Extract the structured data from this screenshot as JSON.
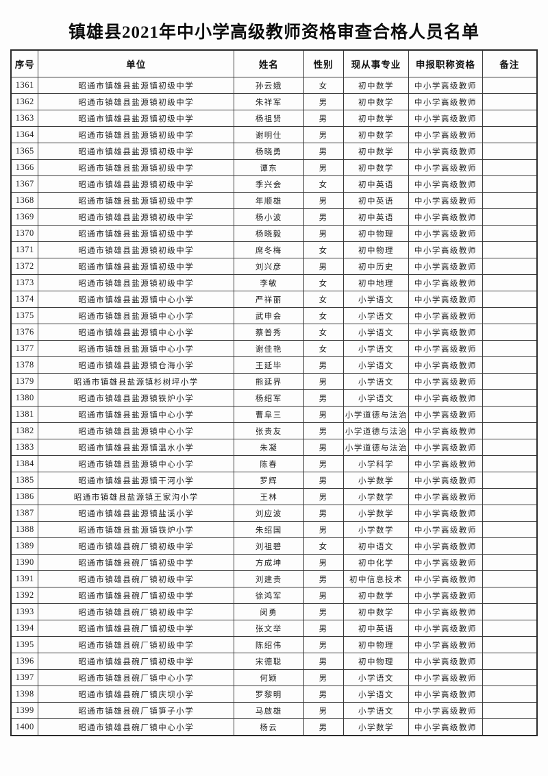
{
  "page": {
    "title": "镇雄县2021年中小学高级教师资格审查合格人员名单"
  },
  "table": {
    "columns": [
      "序号",
      "单位",
      "姓名",
      "性别",
      "现从事专业",
      "申报职称资格",
      "备注"
    ],
    "rows": [
      {
        "no": "1361",
        "unit": "昭通市镇雄县盐源镇初级中学",
        "name": "孙云娥",
        "gender": "女",
        "major": "初中数学",
        "title": "中小学高级教师",
        "remark": ""
      },
      {
        "no": "1362",
        "unit": "昭通市镇雄县盐源镇初级中学",
        "name": "朱祥军",
        "gender": "男",
        "major": "初中数学",
        "title": "中小学高级教师",
        "remark": ""
      },
      {
        "no": "1363",
        "unit": "昭通市镇雄县盐源镇初级中学",
        "name": "杨祖贤",
        "gender": "男",
        "major": "初中数学",
        "title": "中小学高级教师",
        "remark": ""
      },
      {
        "no": "1364",
        "unit": "昭通市镇雄县盐源镇初级中学",
        "name": "谢明仕",
        "gender": "男",
        "major": "初中数学",
        "title": "中小学高级教师",
        "remark": ""
      },
      {
        "no": "1365",
        "unit": "昭通市镇雄县盐源镇初级中学",
        "name": "杨晓勇",
        "gender": "男",
        "major": "初中数学",
        "title": "中小学高级教师",
        "remark": ""
      },
      {
        "no": "1366",
        "unit": "昭通市镇雄县盐源镇初级中学",
        "name": "谭东",
        "gender": "男",
        "major": "初中数学",
        "title": "中小学高级教师",
        "remark": ""
      },
      {
        "no": "1367",
        "unit": "昭通市镇雄县盐源镇初级中学",
        "name": "季兴会",
        "gender": "女",
        "major": "初中英语",
        "title": "中小学高级教师",
        "remark": ""
      },
      {
        "no": "1368",
        "unit": "昭通市镇雄县盐源镇初级中学",
        "name": "年顺雄",
        "gender": "男",
        "major": "初中英语",
        "title": "中小学高级教师",
        "remark": ""
      },
      {
        "no": "1369",
        "unit": "昭通市镇雄县盐源镇初级中学",
        "name": "杨小波",
        "gender": "男",
        "major": "初中英语",
        "title": "中小学高级教师",
        "remark": ""
      },
      {
        "no": "1370",
        "unit": "昭通市镇雄县盐源镇初级中学",
        "name": "杨晓毅",
        "gender": "男",
        "major": "初中物理",
        "title": "中小学高级教师",
        "remark": ""
      },
      {
        "no": "1371",
        "unit": "昭通市镇雄县盐源镇初级中学",
        "name": "席冬梅",
        "gender": "女",
        "major": "初中物理",
        "title": "中小学高级教师",
        "remark": ""
      },
      {
        "no": "1372",
        "unit": "昭通市镇雄县盐源镇初级中学",
        "name": "刘兴彦",
        "gender": "男",
        "major": "初中历史",
        "title": "中小学高级教师",
        "remark": ""
      },
      {
        "no": "1373",
        "unit": "昭通市镇雄县盐源镇初级中学",
        "name": "李敏",
        "gender": "女",
        "major": "初中地理",
        "title": "中小学高级教师",
        "remark": ""
      },
      {
        "no": "1374",
        "unit": "昭通市镇雄县盐源镇中心小学",
        "name": "严祥丽",
        "gender": "女",
        "major": "小学语文",
        "title": "中小学高级教师",
        "remark": ""
      },
      {
        "no": "1375",
        "unit": "昭通市镇雄县盐源镇中心小学",
        "name": "武申会",
        "gender": "女",
        "major": "小学语文",
        "title": "中小学高级教师",
        "remark": ""
      },
      {
        "no": "1376",
        "unit": "昭通市镇雄县盐源镇中心小学",
        "name": "蔡普秀",
        "gender": "女",
        "major": "小学语文",
        "title": "中小学高级教师",
        "remark": ""
      },
      {
        "no": "1377",
        "unit": "昭通市镇雄县盐源镇中心小学",
        "name": "谢佳艳",
        "gender": "女",
        "major": "小学语文",
        "title": "中小学高级教师",
        "remark": ""
      },
      {
        "no": "1378",
        "unit": "昭通市镇雄县盐源镇仓海小学",
        "name": "王延毕",
        "gender": "男",
        "major": "小学语文",
        "title": "中小学高级教师",
        "remark": ""
      },
      {
        "no": "1379",
        "unit": "昭通市镇雄县盐源镇杉树坪小学",
        "name": "熊延界",
        "gender": "男",
        "major": "小学语文",
        "title": "中小学高级教师",
        "remark": ""
      },
      {
        "no": "1380",
        "unit": "昭通市镇雄县盐源镇铁炉小学",
        "name": "杨绍军",
        "gender": "男",
        "major": "小学语文",
        "title": "中小学高级教师",
        "remark": ""
      },
      {
        "no": "1381",
        "unit": "昭通市镇雄县盐源镇中心小学",
        "name": "曹阜三",
        "gender": "男",
        "major": "小学道德与法治",
        "title": "中小学高级教师",
        "remark": ""
      },
      {
        "no": "1382",
        "unit": "昭通市镇雄县盐源镇中心小学",
        "name": "张贵友",
        "gender": "男",
        "major": "小学道德与法治",
        "title": "中小学高级教师",
        "remark": ""
      },
      {
        "no": "1383",
        "unit": "昭通市镇雄县盐源镇温水小学",
        "name": "朱凝",
        "gender": "男",
        "major": "小学道德与法治",
        "title": "中小学高级教师",
        "remark": ""
      },
      {
        "no": "1384",
        "unit": "昭通市镇雄县盐源镇中心小学",
        "name": "陈春",
        "gender": "男",
        "major": "小学科学",
        "title": "中小学高级教师",
        "remark": ""
      },
      {
        "no": "1385",
        "unit": "昭通市镇雄县盐源镇干河小学",
        "name": "罗辉",
        "gender": "男",
        "major": "小学数学",
        "title": "中小学高级教师",
        "remark": ""
      },
      {
        "no": "1386",
        "unit": "昭通市镇雄县盐源镇王家沟小学",
        "name": "王林",
        "gender": "男",
        "major": "小学数学",
        "title": "中小学高级教师",
        "remark": ""
      },
      {
        "no": "1387",
        "unit": "昭通市镇雄县盐源镇盐溪小学",
        "name": "刘应波",
        "gender": "男",
        "major": "小学数学",
        "title": "中小学高级教师",
        "remark": ""
      },
      {
        "no": "1388",
        "unit": "昭通市镇雄县盐源镇铁炉小学",
        "name": "朱绍国",
        "gender": "男",
        "major": "小学数学",
        "title": "中小学高级教师",
        "remark": ""
      },
      {
        "no": "1389",
        "unit": "昭通市镇雄县碗厂镇初级中学",
        "name": "刘祖碧",
        "gender": "女",
        "major": "初中语文",
        "title": "中小学高级教师",
        "remark": ""
      },
      {
        "no": "1390",
        "unit": "昭通市镇雄县碗厂镇初级中学",
        "name": "方成坤",
        "gender": "男",
        "major": "初中化学",
        "title": "中小学高级教师",
        "remark": ""
      },
      {
        "no": "1391",
        "unit": "昭通市镇雄县碗厂镇初级中学",
        "name": "刘建贵",
        "gender": "男",
        "major": "初中信息技术",
        "title": "中小学高级教师",
        "remark": ""
      },
      {
        "no": "1392",
        "unit": "昭通市镇雄县碗厂镇初级中学",
        "name": "徐鸿军",
        "gender": "男",
        "major": "初中数学",
        "title": "中小学高级教师",
        "remark": ""
      },
      {
        "no": "1393",
        "unit": "昭通市镇雄县碗厂镇初级中学",
        "name": "闵勇",
        "gender": "男",
        "major": "初中数学",
        "title": "中小学高级教师",
        "remark": ""
      },
      {
        "no": "1394",
        "unit": "昭通市镇雄县碗厂镇初级中学",
        "name": "张文举",
        "gender": "男",
        "major": "初中英语",
        "title": "中小学高级教师",
        "remark": ""
      },
      {
        "no": "1395",
        "unit": "昭通市镇雄县碗厂镇初级中学",
        "name": "陈绍伟",
        "gender": "男",
        "major": "初中物理",
        "title": "中小学高级教师",
        "remark": ""
      },
      {
        "no": "1396",
        "unit": "昭通市镇雄县碗厂镇初级中学",
        "name": "宋德聪",
        "gender": "男",
        "major": "初中物理",
        "title": "中小学高级教师",
        "remark": ""
      },
      {
        "no": "1397",
        "unit": "昭通市镇雄县碗厂镇中心小学",
        "name": "何颖",
        "gender": "男",
        "major": "小学语文",
        "title": "中小学高级教师",
        "remark": ""
      },
      {
        "no": "1398",
        "unit": "昭通市镇雄县碗厂镇庆坝小学",
        "name": "罗黎明",
        "gender": "男",
        "major": "小学语文",
        "title": "中小学高级教师",
        "remark": ""
      },
      {
        "no": "1399",
        "unit": "昭通市镇雄县碗厂镇笋子小学",
        "name": "马啟雄",
        "gender": "男",
        "major": "小学语文",
        "title": "中小学高级教师",
        "remark": ""
      },
      {
        "no": "1400",
        "unit": "昭通市镇雄县碗厂镇中心小学",
        "name": "杨云",
        "gender": "男",
        "major": "小学数学",
        "title": "中小学高级教师",
        "remark": ""
      }
    ]
  }
}
